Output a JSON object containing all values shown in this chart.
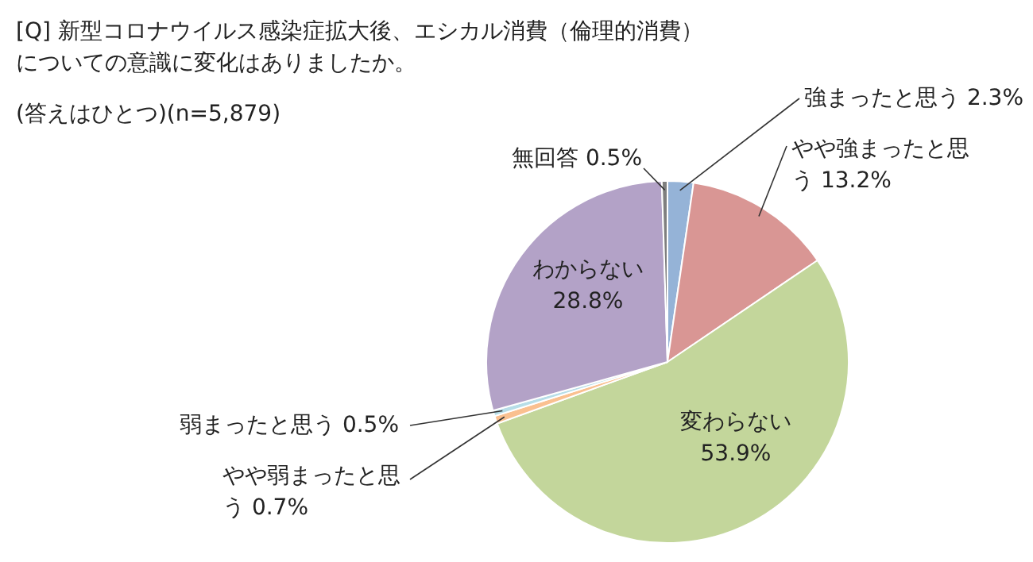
{
  "chart_data": {
    "type": "pie",
    "title": "[Q] 新型コロナウイルス感染症拡大後、エシカル消費（倫理的消費）についての意識に変化はありましたか。",
    "subtitle": "(答えはひとつ)(n=5,879)",
    "categories": [
      "強まったと思う",
      "やや強まったと思う",
      "変わらない",
      "やや弱まったと思う",
      "弱まったと思う",
      "わからない",
      "無回答"
    ],
    "values": [
      2.3,
      13.2,
      53.9,
      0.7,
      0.5,
      28.8,
      0.5
    ],
    "colors": [
      "#95b3d7",
      "#d99694",
      "#c3d69b",
      "#fac090",
      "#b7dee8",
      "#b3a2c7",
      "#7f7f7f"
    ],
    "value_labels": [
      "2.3%",
      "13.2%",
      "53.9%",
      "0.7%",
      "0.5%",
      "28.8%",
      "0.5%"
    ],
    "legend": false
  }
}
